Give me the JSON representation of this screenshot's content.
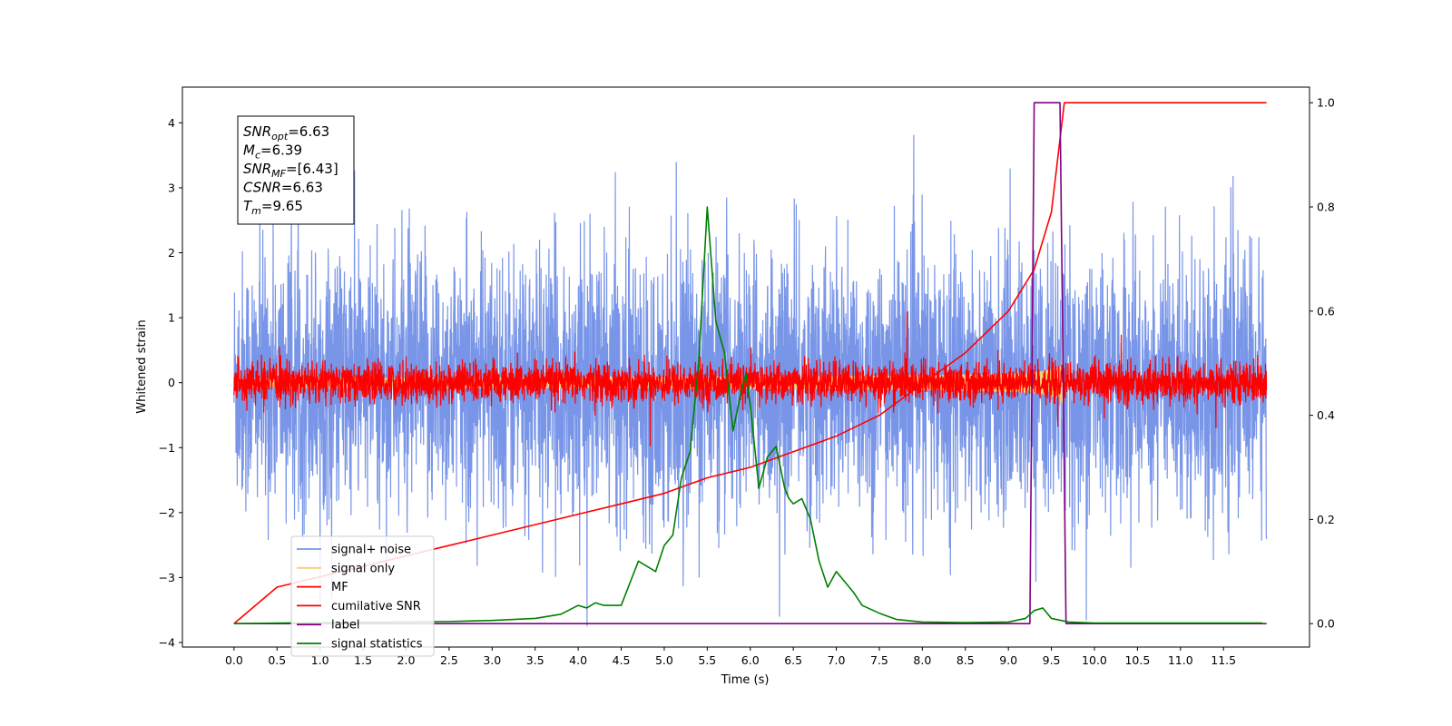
{
  "chart_data": {
    "type": "line",
    "xlabel": "Time (s)",
    "ylabel_left": "Whitened strain",
    "ylabel_right": "",
    "xlim": [
      -0.6,
      12.5
    ],
    "ylim_left": [
      -4.07,
      4.55
    ],
    "ylim_right": [
      -0.045,
      1.03
    ],
    "x_ticks": [
      "0.0",
      "0.5",
      "1.0",
      "1.5",
      "2.0",
      "2.5",
      "3.0",
      "3.5",
      "4.0",
      "4.5",
      "5.0",
      "5.5",
      "6.0",
      "6.5",
      "7.0",
      "7.5",
      "8.0",
      "8.5",
      "9.0",
      "9.5",
      "10.0",
      "10.5",
      "11.0",
      "11.5"
    ],
    "y_ticks_left": [
      "−4",
      "−3",
      "−2",
      "−1",
      "0",
      "1",
      "2",
      "3",
      "4"
    ],
    "y_ticks_right": [
      "0.0",
      "0.2",
      "0.4",
      "0.6",
      "0.8",
      "1.0"
    ],
    "legend_placement": "lower-left",
    "annotation": {
      "lines": [
        {
          "var": "SNR",
          "sub": "opt",
          "val": "=6.63"
        },
        {
          "var": "M",
          "sub": "c",
          "val": "=6.39"
        },
        {
          "var": "SNR",
          "sub": "MF",
          "val": "=[6.43]"
        },
        {
          "var": "CSNR",
          "sub": "",
          "val": "=6.63"
        },
        {
          "var": "T",
          "sub": "m",
          "val": "=9.65"
        }
      ]
    },
    "series": [
      {
        "name": "signal+ noise",
        "color": "#7895e8",
        "axis": "left",
        "style": "noise",
        "x_range": [
          0,
          12
        ],
        "amplitude": 1.05
      },
      {
        "name": "signal only",
        "color": "#f2d27a",
        "axis": "left",
        "style": "chirp",
        "x_range": [
          0,
          9.65
        ],
        "peak_amplitude": 0.35
      },
      {
        "name": "MF",
        "color": "#ff0000",
        "axis": "left",
        "style": "noise",
        "x_range": [
          0,
          12
        ],
        "amplitude": 0.16
      },
      {
        "name": "cumilative SNR",
        "color": "#ff0000",
        "axis": "right",
        "x": [
          0,
          0.5,
          1,
          1.5,
          2,
          2.5,
          3,
          3.5,
          4,
          4.5,
          5,
          5.5,
          6,
          6.5,
          7,
          7.5,
          8,
          8.5,
          9,
          9.3,
          9.5,
          9.65,
          9.8,
          12
        ],
        "y": [
          0,
          0.07,
          0.09,
          0.11,
          0.13,
          0.15,
          0.17,
          0.19,
          0.21,
          0.23,
          0.25,
          0.28,
          0.3,
          0.33,
          0.36,
          0.4,
          0.46,
          0.52,
          0.6,
          0.68,
          0.79,
          1.0,
          1.0,
          1.0
        ]
      },
      {
        "name": "label",
        "color": "#800080",
        "axis": "right",
        "x": [
          0,
          9.25,
          9.3,
          9.6,
          9.67,
          12
        ],
        "y": [
          0,
          0,
          1,
          1,
          0,
          0
        ]
      },
      {
        "name": "signal statistics",
        "color": "#008000",
        "axis": "right",
        "x": [
          0,
          1,
          2,
          2.5,
          3,
          3.5,
          3.8,
          4.0,
          4.1,
          4.2,
          4.3,
          4.5,
          4.7,
          4.9,
          5.0,
          5.1,
          5.2,
          5.3,
          5.4,
          5.5,
          5.6,
          5.7,
          5.8,
          5.9,
          5.95,
          6.0,
          6.1,
          6.2,
          6.3,
          6.4,
          6.45,
          6.5,
          6.6,
          6.7,
          6.8,
          6.9,
          7.0,
          7.1,
          7.2,
          7.3,
          7.5,
          7.7,
          8.0,
          8.5,
          9.0,
          9.2,
          9.3,
          9.4,
          9.5,
          9.7,
          10,
          11,
          11.95
        ],
        "y": [
          0,
          0.002,
          0.003,
          0.004,
          0.006,
          0.01,
          0.018,
          0.035,
          0.03,
          0.04,
          0.035,
          0.035,
          0.12,
          0.1,
          0.15,
          0.17,
          0.28,
          0.33,
          0.5,
          0.8,
          0.58,
          0.52,
          0.37,
          0.45,
          0.48,
          0.42,
          0.26,
          0.32,
          0.34,
          0.26,
          0.24,
          0.23,
          0.24,
          0.2,
          0.12,
          0.07,
          0.1,
          0.08,
          0.06,
          0.035,
          0.02,
          0.008,
          0.003,
          0.002,
          0.003,
          0.01,
          0.025,
          0.03,
          0.01,
          0.003,
          0.001,
          0.001,
          0.001
        ]
      }
    ]
  }
}
